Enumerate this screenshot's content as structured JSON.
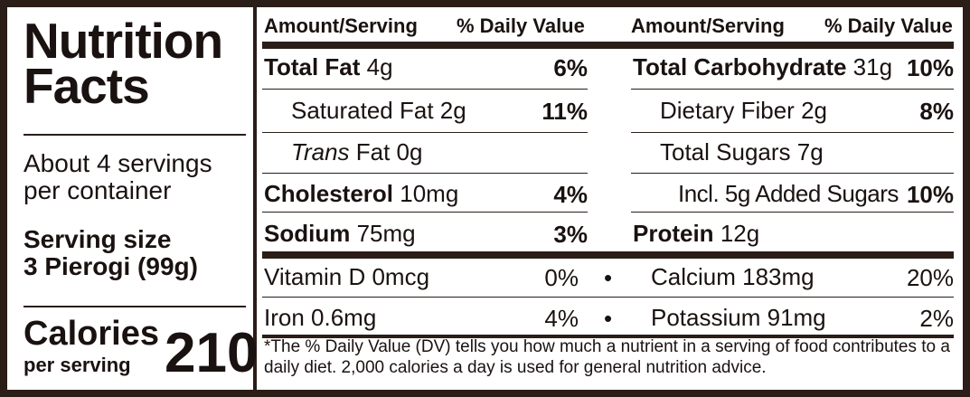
{
  "title": "Nutrition Facts",
  "servings_per_container": "About 4 servings per container",
  "serving_size_label": "Serving size",
  "serving_size_value": "3 Pierogi (99g)",
  "calories_label": "Calories",
  "calories_sub": "per serving",
  "calories_value": "210",
  "header": {
    "amount": "Amount/Serving",
    "dv": "% Daily Value"
  },
  "left_rows": [
    {
      "name": "Total Fat",
      "amount": "4g",
      "pct": "6%"
    },
    {
      "name": "Saturated Fat",
      "amount": "2g",
      "pct": "11%"
    },
    {
      "name": "Trans",
      "amount": "Fat 0g",
      "pct": ""
    },
    {
      "name": "Cholesterol",
      "amount": "10mg",
      "pct": "4%"
    },
    {
      "name": "Sodium",
      "amount": "75mg",
      "pct": "3%"
    }
  ],
  "right_rows": [
    {
      "name": "Total Carbohydrate",
      "amount": "31g",
      "pct": "10%"
    },
    {
      "name": "Dietary Fiber",
      "amount": "2g",
      "pct": "8%"
    },
    {
      "name": "Total Sugars",
      "amount": "7g",
      "pct": ""
    },
    {
      "name": "Incl. 5g Added Sugars",
      "amount": "",
      "pct": "10%"
    },
    {
      "name": "Protein",
      "amount": "12g",
      "pct": ""
    }
  ],
  "vitamins": [
    {
      "left_name": "Vitamin D 0mcg",
      "left_pct": "0%",
      "right_name": "Calcium 183mg",
      "right_pct": "20%"
    },
    {
      "left_name": "Iron 0.6mg",
      "left_pct": "4%",
      "right_name": "Potassium 91mg",
      "right_pct": "2%"
    }
  ],
  "bullet": "•",
  "footnote": "*The % Daily Value (DV) tells you how much a nutrient in a serving of food contributes to a daily diet. 2,000 calories a day is used for general nutrition advice."
}
